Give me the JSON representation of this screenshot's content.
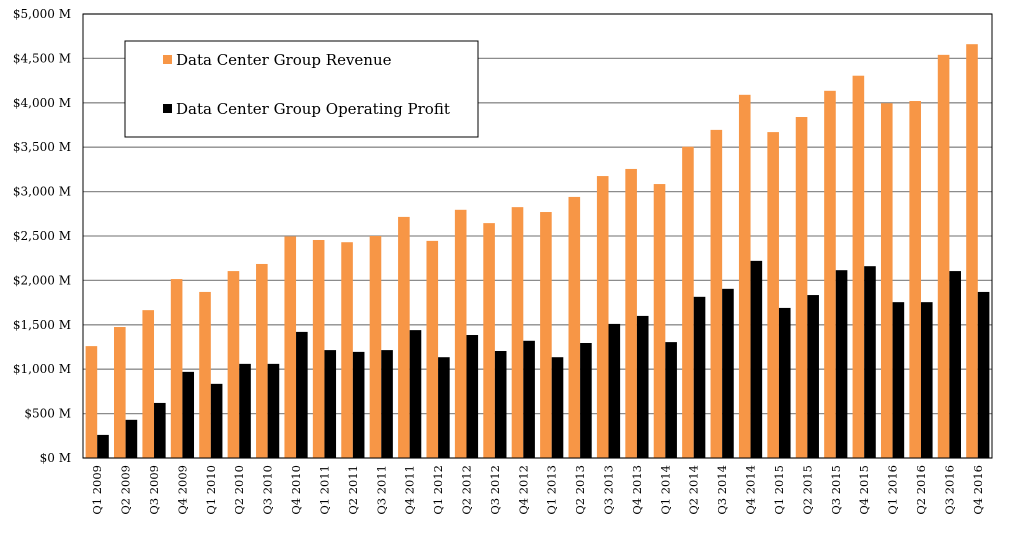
{
  "chart_data": {
    "type": "bar",
    "title": "",
    "xlabel": "",
    "ylabel": "",
    "ylim": [
      0,
      5000
    ],
    "ytick_step": 500,
    "ytick_labels": [
      "$0 M",
      "$500 M",
      "$1,000 M",
      "$1,500 M",
      "$2,000 M",
      "$2,500 M",
      "$3,000 M",
      "$3,500 M",
      "$4,000 M",
      "$4,500 M",
      "$5,000 M"
    ],
    "grid": true,
    "legend_position": "top-left",
    "categories": [
      "Q1 2009",
      "Q2 2009",
      "Q3 2009",
      "Q4 2009",
      "Q1 2010",
      "Q2 2010",
      "Q3 2010",
      "Q4 2010",
      "Q1 2011",
      "Q2 2011",
      "Q3 2011",
      "Q4 2011",
      "Q1 2012",
      "Q2 2012",
      "Q3 2012",
      "Q4 2012",
      "Q1 2013",
      "Q2 2013",
      "Q3 2013",
      "Q4 2013",
      "Q1 2014",
      "Q2 2014",
      "Q3 2014",
      "Q4 2014",
      "Q1 2015",
      "Q2 2015",
      "Q3 2015",
      "Q4 2015",
      "Q1 2016",
      "Q2 2016",
      "Q3 2016",
      "Q4 2016"
    ],
    "series": [
      {
        "name": "Data Center Group Revenue",
        "color": "#F79646",
        "values": [
          1260,
          1475,
          1665,
          2015,
          1870,
          2105,
          2185,
          2495,
          2455,
          2430,
          2500,
          2715,
          2445,
          2795,
          2645,
          2825,
          2770,
          2940,
          3175,
          3255,
          3085,
          3505,
          3695,
          4090,
          3670,
          3840,
          4135,
          4305,
          3995,
          4020,
          4540,
          4660
        ]
      },
      {
        "name": "Data Center Group Operating Profit",
        "color": "#000000",
        "values": [
          260,
          430,
          620,
          970,
          835,
          1060,
          1060,
          1420,
          1215,
          1195,
          1215,
          1440,
          1135,
          1385,
          1205,
          1320,
          1135,
          1295,
          1510,
          1600,
          1305,
          1815,
          1905,
          2220,
          1690,
          1835,
          2115,
          2160,
          1755,
          1755,
          2105,
          1870
        ]
      }
    ]
  }
}
